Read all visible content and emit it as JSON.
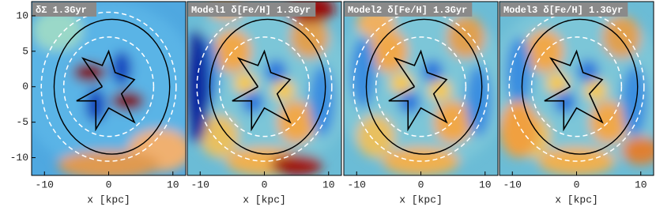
{
  "chart_data": [
    {
      "type": "image",
      "title": "δΣ  1.3Gyr",
      "xlabel": "x [kpc]",
      "xlim": [
        -12,
        12
      ],
      "ylim": [
        -12.5,
        12
      ],
      "xticks": [
        -10,
        0,
        10
      ],
      "yticks": [
        -10,
        -5,
        0,
        5,
        10
      ]
    },
    {
      "type": "image",
      "title": "Model1 δ[Fe/H] 1.3Gyr",
      "xlabel": "x [kpc]",
      "xlim": [
        -12,
        12
      ],
      "ylim": [
        -12.5,
        12
      ],
      "xticks": [
        -10,
        0,
        10
      ]
    },
    {
      "type": "image",
      "title": "Model2 δ[Fe/H] 1.3Gyr",
      "xlabel": "x [kpc]",
      "xlim": [
        -12,
        12
      ],
      "ylim": [
        -12.5,
        12
      ],
      "xticks": [
        -10,
        0,
        10
      ]
    },
    {
      "type": "image",
      "title": "Model3 δ[Fe/H] 1.3Gyr",
      "xlabel": "x [kpc]",
      "xlim": [
        -12,
        12
      ],
      "ylim": [
        -12.5,
        12
      ],
      "xticks": [
        -10,
        0,
        10
      ]
    }
  ]
}
